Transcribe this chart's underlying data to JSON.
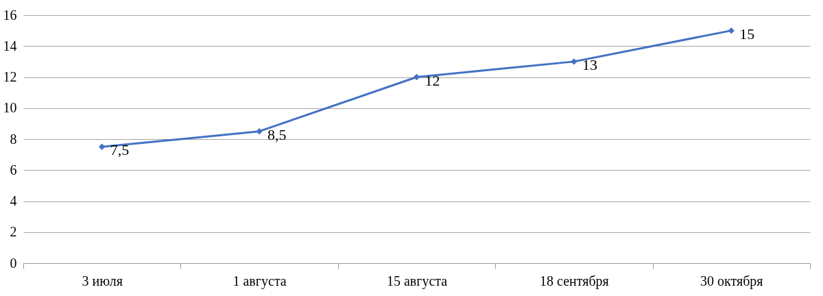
{
  "chart_data": {
    "type": "line",
    "categories": [
      "3 июля",
      "1 августа",
      "15 августа",
      "18 сентября",
      "30 октября"
    ],
    "series": [
      {
        "color": "#4472c4",
        "values": [
          7.5,
          8.5,
          12,
          13,
          15
        ],
        "value_labels": [
          "7,5",
          "8,5",
          "12",
          "13",
          "15"
        ]
      }
    ],
    "ylim": [
      0,
      16
    ],
    "yticks": [
      0,
      2,
      4,
      6,
      8,
      10,
      12,
      14,
      16
    ],
    "grid": "y",
    "marker": "diamond",
    "line_style": "solid"
  }
}
